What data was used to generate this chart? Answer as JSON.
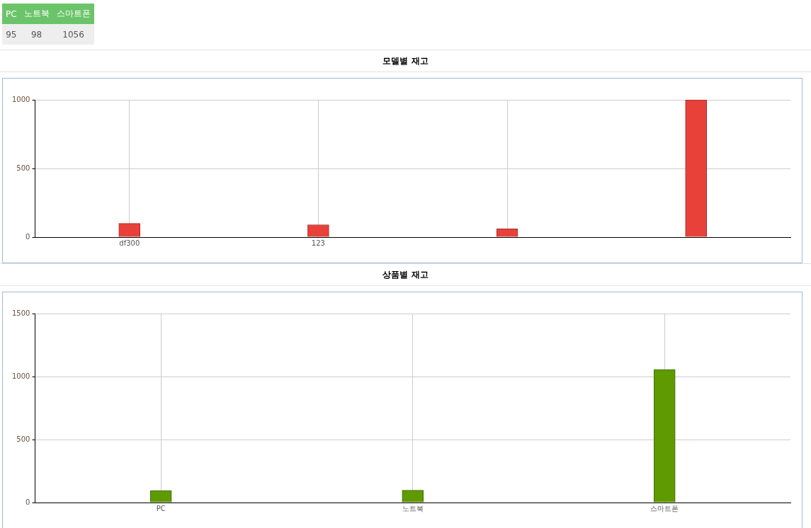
{
  "chart_data": [
    {
      "type": "other",
      "categories": [
        "PC",
        "노트북",
        "스마트폰"
      ],
      "value_labels": [
        "95",
        "98",
        "1056"
      ]
    },
    {
      "type": "bar",
      "title": "모델별 재고",
      "categories": [
        "df300",
        "123",
        null,
        null
      ],
      "values": [
        100,
        90,
        60,
        1000
      ],
      "color": "#e8413a",
      "ylim": [
        0,
        1000
      ],
      "yticks": [
        0,
        500,
        1000
      ],
      "grid": true
    },
    {
      "type": "bar",
      "title": "상품별 재고",
      "categories": [
        "PC",
        "노트북",
        "스마트폰"
      ],
      "values": [
        95,
        98,
        1056
      ],
      "color": "#5f9a00",
      "ylim": [
        0,
        1500
      ],
      "yticks": [
        0,
        500,
        1000,
        1500
      ],
      "grid": true
    }
  ]
}
